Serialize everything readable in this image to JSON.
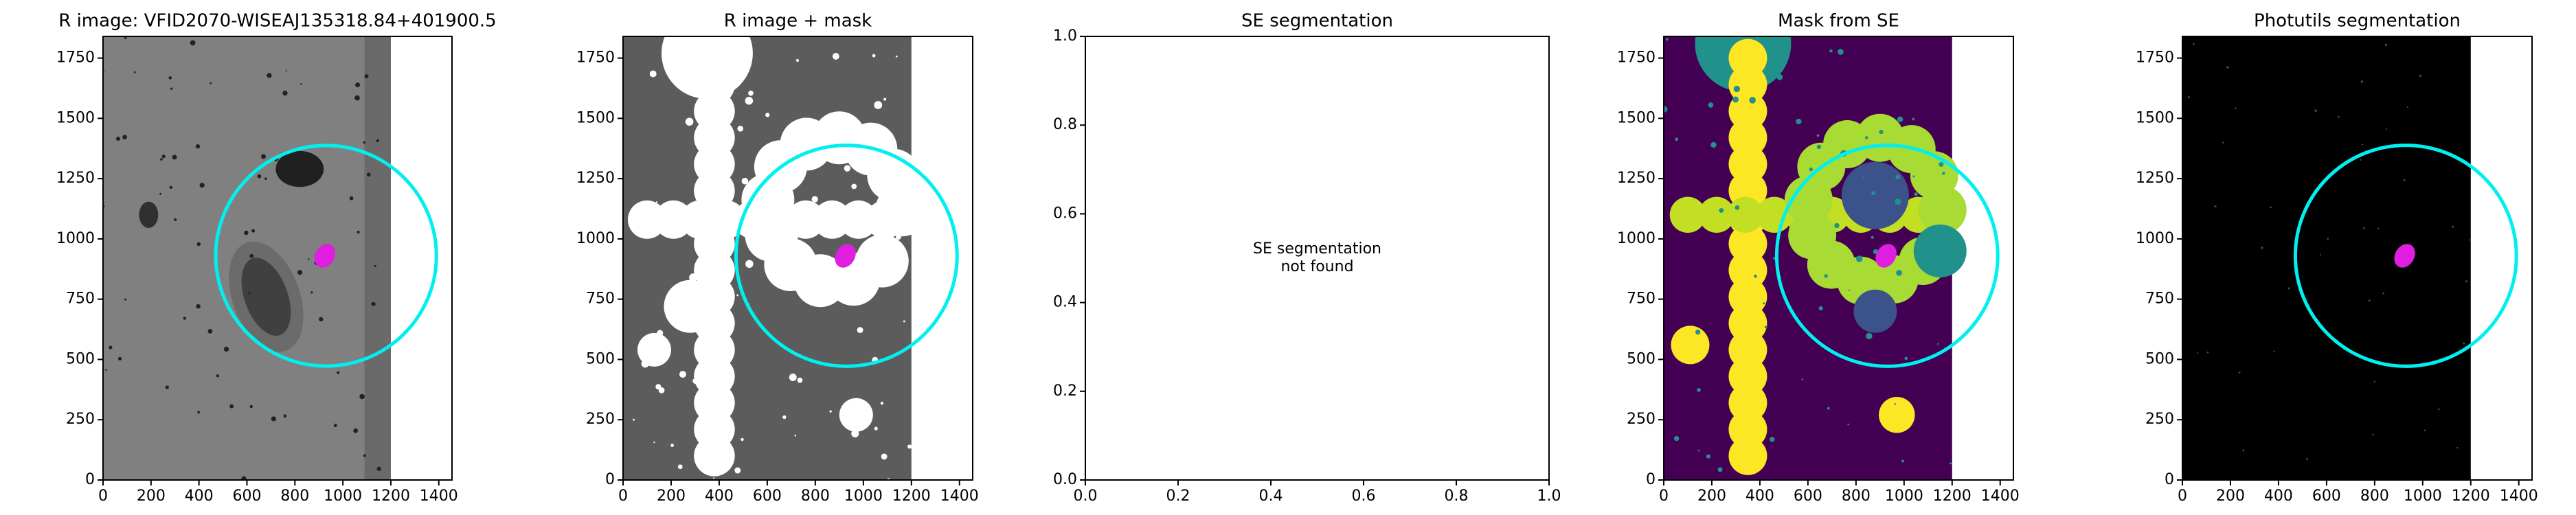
{
  "chart_data": [
    {
      "type": "image",
      "title": "R image: VFID2070-WISEAJ135318.84+401900.5",
      "style": "sky",
      "xlim": [
        0,
        1455
      ],
      "ylim": [
        0,
        1840
      ],
      "xticks": [
        0,
        200,
        400,
        600,
        800,
        1000,
        1200,
        1400
      ],
      "yticks": [
        0,
        250,
        500,
        750,
        1000,
        1250,
        1500,
        1750
      ],
      "extent": [
        0,
        1200,
        0,
        1840
      ],
      "aperture": {
        "x": 930,
        "y": 930,
        "r": 460,
        "color": "#00f0f0"
      },
      "source": {
        "x": 925,
        "y": 930,
        "r": 40,
        "color": "#e01ee0"
      }
    },
    {
      "type": "image",
      "title": "R image + mask",
      "style": "mask",
      "xlim": [
        0,
        1455
      ],
      "ylim": [
        0,
        1840
      ],
      "xticks": [
        0,
        200,
        400,
        600,
        800,
        1000,
        1200,
        1400
      ],
      "yticks": [
        0,
        250,
        500,
        750,
        1000,
        1250,
        1500,
        1750
      ],
      "extent": [
        0,
        1200,
        0,
        1840
      ],
      "aperture": {
        "x": 930,
        "y": 930,
        "r": 460,
        "color": "#00f0f0"
      },
      "source": {
        "x": 925,
        "y": 930,
        "r": 40,
        "color": "#e01ee0"
      }
    },
    {
      "type": "text",
      "title": "SE segmentation",
      "text": [
        "SE segmentation",
        "not found"
      ],
      "xlim": [
        0,
        1
      ],
      "ylim": [
        0,
        1
      ],
      "xticks": [
        {
          "value": 0,
          "label": "0.0"
        },
        {
          "value": 0.2,
          "label": "0.2"
        },
        {
          "value": 0.4,
          "label": "0.4"
        },
        {
          "value": 0.6,
          "label": "0.6"
        },
        {
          "value": 0.8,
          "label": "0.8"
        },
        {
          "value": 1,
          "label": "1.0"
        }
      ],
      "yticks": [
        {
          "value": 0,
          "label": "0.0"
        },
        {
          "value": 0.2,
          "label": "0.2"
        },
        {
          "value": 0.4,
          "label": "0.4"
        },
        {
          "value": 0.6,
          "label": "0.6"
        },
        {
          "value": 0.8,
          "label": "0.8"
        },
        {
          "value": 1,
          "label": "1.0"
        }
      ]
    },
    {
      "type": "image",
      "title": "Mask from SE",
      "style": "segmap",
      "xlim": [
        0,
        1455
      ],
      "ylim": [
        0,
        1840
      ],
      "xticks": [
        0,
        200,
        400,
        600,
        800,
        1000,
        1200,
        1400
      ],
      "yticks": [
        0,
        250,
        500,
        750,
        1000,
        1250,
        1500,
        1750
      ],
      "extent": [
        0,
        1200,
        0,
        1840
      ],
      "aperture": {
        "x": 930,
        "y": 930,
        "r": 460,
        "color": "#00f0f0"
      },
      "source": {
        "x": 925,
        "y": 930,
        "r": 40,
        "color": "#e01ee0"
      }
    },
    {
      "type": "image",
      "title": "Photutils segmentation",
      "style": "dark",
      "xlim": [
        0,
        1455
      ],
      "ylim": [
        0,
        1840
      ],
      "xticks": [
        0,
        200,
        400,
        600,
        800,
        1000,
        1200,
        1400
      ],
      "yticks": [
        0,
        250,
        500,
        750,
        1000,
        1250,
        1500,
        1750
      ],
      "extent": [
        0,
        1200,
        0,
        1840
      ],
      "aperture": {
        "x": 930,
        "y": 930,
        "r": 460,
        "color": "#00f0f0"
      },
      "source": {
        "x": 925,
        "y": 930,
        "r": 40,
        "color": "#e01ee0"
      }
    }
  ]
}
